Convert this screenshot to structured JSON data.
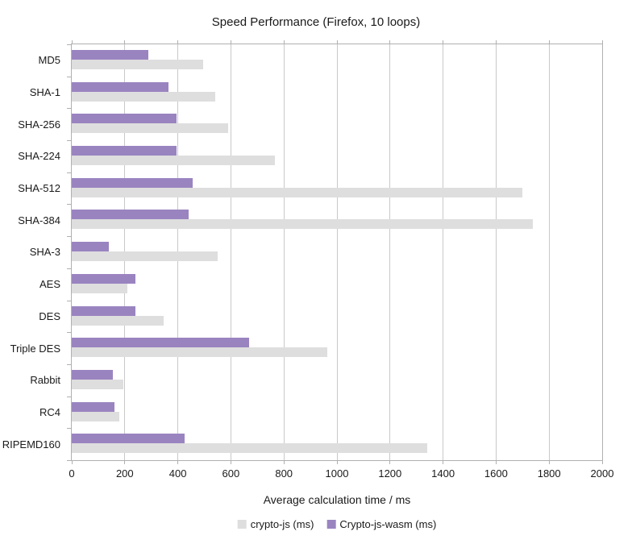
{
  "title": "Speed Performance (Firefox, 10 loops)",
  "chart_data": {
    "type": "bar",
    "orientation": "horizontal",
    "title": "Speed Performance (Firefox, 10 loops)",
    "xlabel": "Average calculation time / ms",
    "ylabel": "",
    "xlim": [
      0,
      2000
    ],
    "xticks": [
      0,
      200,
      400,
      600,
      800,
      1000,
      1200,
      1400,
      1600,
      1800,
      2000
    ],
    "grid": "vertical",
    "legend_position": "bottom",
    "categories": [
      "MD5",
      "SHA-1",
      "SHA-256",
      "SHA-224",
      "SHA-512",
      "SHA-384",
      "SHA-3",
      "AES",
      "DES",
      "Triple DES",
      "Rabbit",
      "RC4",
      "RIPEMD160"
    ],
    "series": [
      {
        "name": "crypto-js (ms)",
        "color": "#dedede",
        "values": [
          495,
          540,
          590,
          765,
          1700,
          1740,
          550,
          210,
          345,
          965,
          195,
          180,
          1340
        ]
      },
      {
        "name": "Crypto-js-wasm (ms)",
        "color": "#9a84c0",
        "values": [
          290,
          365,
          395,
          395,
          455,
          440,
          140,
          240,
          240,
          670,
          155,
          160,
          425
        ]
      }
    ],
    "colors": {
      "gridline": "#c9c9c9",
      "axis_line": "#b0b0b0",
      "text": "#1a1a1a"
    }
  }
}
